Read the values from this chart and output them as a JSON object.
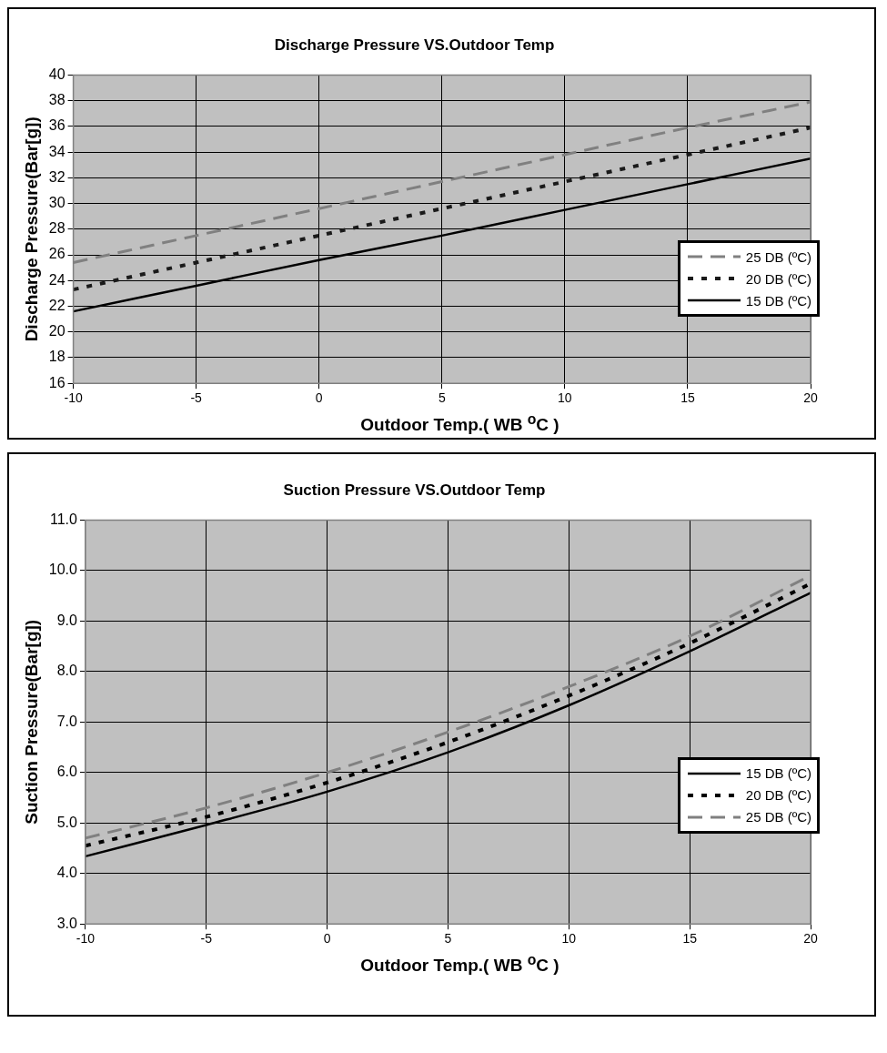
{
  "chart_data": [
    {
      "type": "line",
      "title": "Discharge Pressure VS.Outdoor Temp",
      "xlabel": "Outdoor Temp.( WB $^{o}$C )",
      "ylabel": "Discharge Pressure(Bar[g])",
      "x": [
        -10,
        -5,
        0,
        5,
        10,
        15,
        20
      ],
      "series": [
        {
          "name": "25 DB (ºC)",
          "color": "#808080",
          "line_style": "dashed",
          "values": [
            25.4,
            27.5,
            29.6,
            31.7,
            33.8,
            35.9,
            37.9
          ]
        },
        {
          "name": "20 DB (ºC)",
          "color": "#1a1a1a",
          "line_style": "dotted",
          "values": [
            23.3,
            25.4,
            27.5,
            29.6,
            31.7,
            33.8,
            35.9
          ]
        },
        {
          "name": "15 DB (ºC)",
          "color": "#000000",
          "line_style": "solid",
          "values": [
            21.6,
            23.6,
            25.6,
            27.5,
            29.5,
            31.5,
            33.5
          ]
        }
      ],
      "xlim": [
        -10,
        20
      ],
      "xticks": [
        -10,
        -5,
        0,
        5,
        10,
        15,
        20
      ],
      "ylim": [
        16,
        40
      ],
      "yticks": [
        16,
        18,
        20,
        22,
        24,
        26,
        28,
        30,
        32,
        34,
        36,
        38,
        40
      ],
      "grid": true,
      "legend": "right",
      "marker": "none"
    },
    {
      "type": "line",
      "title": "Suction Pressure VS.Outdoor Temp",
      "xlabel": "Outdoor Temp.( WB $^{o}$C )",
      "ylabel": "Suction Pressure(Bar[g])",
      "x": [
        -10,
        -5,
        0,
        5,
        10,
        15,
        20
      ],
      "series": [
        {
          "name": "15 DB (ºC)",
          "color": "#000000",
          "line_style": "solid",
          "values": [
            4.34,
            4.96,
            5.62,
            6.4,
            7.33,
            8.4,
            9.56
          ]
        },
        {
          "name": "20 DB (ºC)",
          "color": "#000000",
          "line_style": "dotted",
          "values": [
            4.55,
            5.12,
            5.8,
            6.6,
            7.52,
            8.56,
            9.74
          ]
        },
        {
          "name": "25 DB (ºC)",
          "color": "#808080",
          "line_style": "dashed",
          "values": [
            4.7,
            5.3,
            6.0,
            6.8,
            7.7,
            8.7,
            9.9
          ]
        }
      ],
      "xlim": [
        -10,
        20
      ],
      "xticks": [
        -10,
        -5,
        0,
        5,
        10,
        15,
        20
      ],
      "ylim": [
        3,
        11
      ],
      "yticks": [
        {
          "value": 3,
          "label": "3.0"
        },
        {
          "value": 4,
          "label": "4.0"
        },
        {
          "value": 5,
          "label": "5.0"
        },
        {
          "value": 6,
          "label": "6.0"
        },
        {
          "value": 7,
          "label": "7.0"
        },
        {
          "value": 8,
          "label": "8.0"
        },
        {
          "value": 9,
          "label": "9.0"
        },
        {
          "value": 10,
          "label": "10.0"
        },
        {
          "value": 11,
          "label": "11.0"
        }
      ],
      "grid": true,
      "legend": "right",
      "marker": "none"
    }
  ]
}
